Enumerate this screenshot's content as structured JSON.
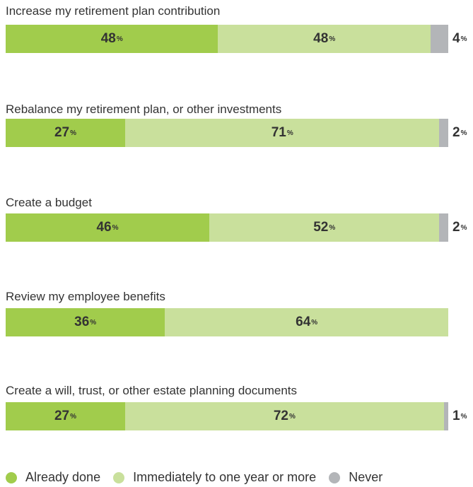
{
  "chart_data": {
    "type": "bar",
    "orientation": "horizontal",
    "stacked": true,
    "percent_symbol": "%",
    "categories": [
      "Increase my retirement plan contribution",
      "Rebalance my retirement plan, or other investments",
      "Create a budget",
      "Review my employee benefits",
      "Create a will, trust, or other estate planning documents"
    ],
    "series": [
      {
        "name": "Already done",
        "color": "#a1cc4c",
        "values": [
          48,
          27,
          46,
          36,
          27
        ]
      },
      {
        "name": "Immediately to one year or more",
        "color": "#c9e09c",
        "values": [
          48,
          71,
          52,
          64,
          72
        ]
      },
      {
        "name": "Never",
        "color": "#b3b5b8",
        "values": [
          4,
          2,
          2,
          null,
          1
        ]
      }
    ],
    "legend_position": "bottom",
    "grid": false
  }
}
